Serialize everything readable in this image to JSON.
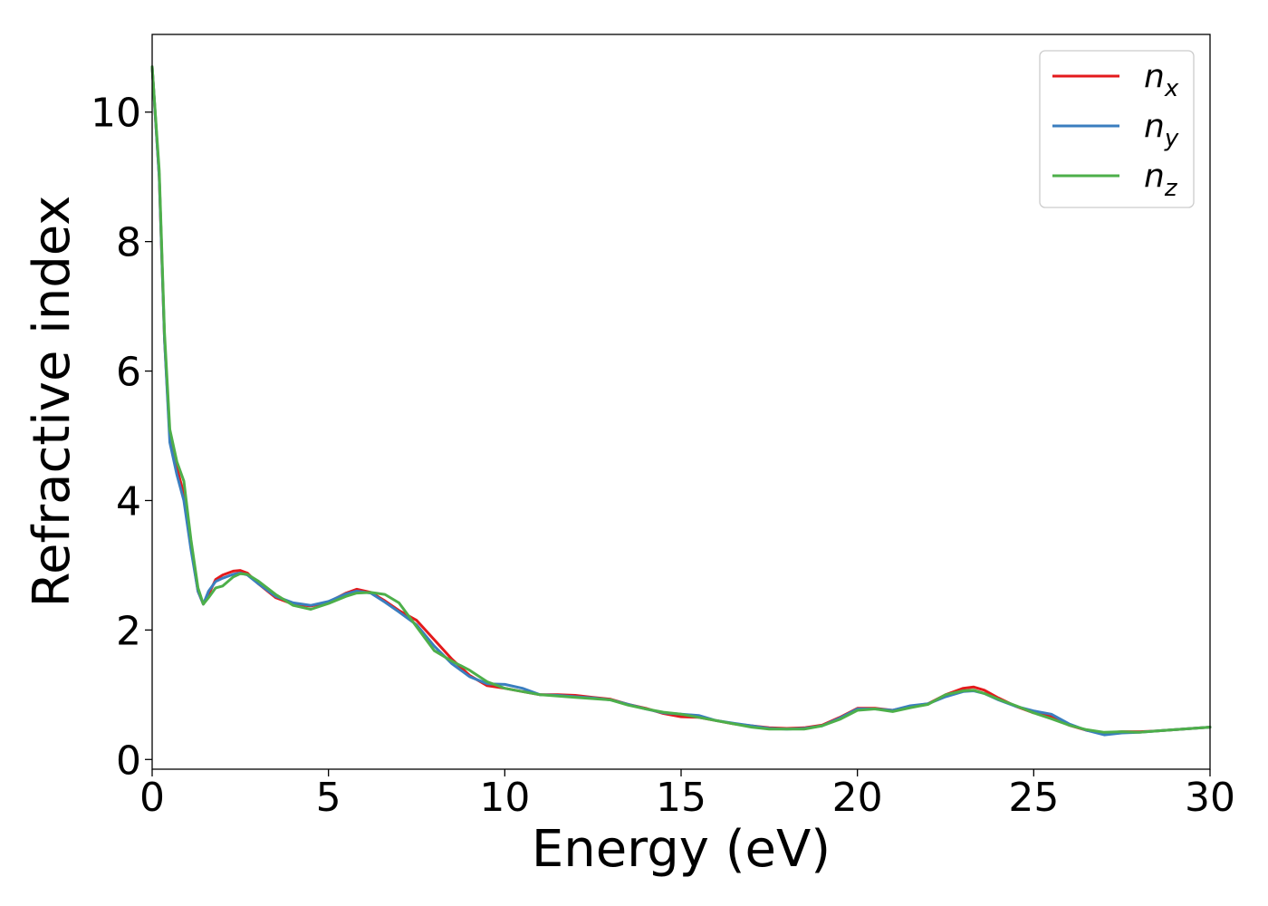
{
  "chart_data": {
    "type": "line",
    "title": "",
    "xlabel": "Energy (eV)",
    "ylabel": "Refractive index",
    "xlim": [
      0,
      30
    ],
    "ylim": [
      -0.15,
      11.2
    ],
    "xticks": [
      0,
      5,
      10,
      15,
      20,
      25,
      30
    ],
    "yticks": [
      0,
      2,
      4,
      6,
      8,
      10
    ],
    "grid": false,
    "legend_position": "top-right",
    "series": [
      {
        "name": "n_x",
        "label_main": "n",
        "label_sub": "x",
        "color": "#e31a1c",
        "points": [
          [
            0,
            10.7
          ],
          [
            0.2,
            9.0
          ],
          [
            0.35,
            6.5
          ],
          [
            0.5,
            5.0
          ],
          [
            0.7,
            4.5
          ],
          [
            0.9,
            4.1
          ],
          [
            1.1,
            3.3
          ],
          [
            1.3,
            2.6
          ],
          [
            1.45,
            2.4
          ],
          [
            1.6,
            2.55
          ],
          [
            1.8,
            2.78
          ],
          [
            2.0,
            2.85
          ],
          [
            2.3,
            2.91
          ],
          [
            2.5,
            2.92
          ],
          [
            2.7,
            2.88
          ],
          [
            3.0,
            2.72
          ],
          [
            3.5,
            2.5
          ],
          [
            4.0,
            2.4
          ],
          [
            4.5,
            2.37
          ],
          [
            5.0,
            2.43
          ],
          [
            5.5,
            2.57
          ],
          [
            5.8,
            2.63
          ],
          [
            6.2,
            2.58
          ],
          [
            6.6,
            2.45
          ],
          [
            7.0,
            2.3
          ],
          [
            7.5,
            2.15
          ],
          [
            8.0,
            1.85
          ],
          [
            8.5,
            1.55
          ],
          [
            9.0,
            1.3
          ],
          [
            9.5,
            1.14
          ],
          [
            10.0,
            1.1
          ],
          [
            10.5,
            1.05
          ],
          [
            11.0,
            1.0
          ],
          [
            11.5,
            1.0
          ],
          [
            12.0,
            0.99
          ],
          [
            12.5,
            0.96
          ],
          [
            13.0,
            0.93
          ],
          [
            13.5,
            0.85
          ],
          [
            14.0,
            0.79
          ],
          [
            14.5,
            0.71
          ],
          [
            15.0,
            0.66
          ],
          [
            15.5,
            0.65
          ],
          [
            16.0,
            0.6
          ],
          [
            16.5,
            0.55
          ],
          [
            17.0,
            0.52
          ],
          [
            17.5,
            0.49
          ],
          [
            18.0,
            0.48
          ],
          [
            18.5,
            0.49
          ],
          [
            19.0,
            0.53
          ],
          [
            19.5,
            0.65
          ],
          [
            20.0,
            0.79
          ],
          [
            20.5,
            0.79
          ],
          [
            21.0,
            0.76
          ],
          [
            21.5,
            0.82
          ],
          [
            22.0,
            0.86
          ],
          [
            22.5,
            1.0
          ],
          [
            23.0,
            1.1
          ],
          [
            23.3,
            1.12
          ],
          [
            23.6,
            1.07
          ],
          [
            24.0,
            0.95
          ],
          [
            24.5,
            0.82
          ],
          [
            25.0,
            0.72
          ],
          [
            25.5,
            0.66
          ],
          [
            26.0,
            0.53
          ],
          [
            26.5,
            0.45
          ],
          [
            27.0,
            0.41
          ],
          [
            27.5,
            0.43
          ],
          [
            28.0,
            0.43
          ],
          [
            28.5,
            0.44
          ],
          [
            29.0,
            0.46
          ],
          [
            29.5,
            0.48
          ],
          [
            30.0,
            0.5
          ]
        ]
      },
      {
        "name": "n_y",
        "label_main": "n",
        "label_sub": "y",
        "color": "#3a7ebf",
        "points": [
          [
            0,
            10.7
          ],
          [
            0.2,
            9.0
          ],
          [
            0.35,
            6.5
          ],
          [
            0.5,
            4.9
          ],
          [
            0.7,
            4.4
          ],
          [
            0.9,
            4.0
          ],
          [
            1.1,
            3.25
          ],
          [
            1.3,
            2.6
          ],
          [
            1.45,
            2.4
          ],
          [
            1.6,
            2.6
          ],
          [
            1.8,
            2.75
          ],
          [
            2.0,
            2.8
          ],
          [
            2.3,
            2.86
          ],
          [
            2.5,
            2.88
          ],
          [
            2.7,
            2.85
          ],
          [
            3.0,
            2.72
          ],
          [
            3.5,
            2.52
          ],
          [
            4.0,
            2.42
          ],
          [
            4.5,
            2.38
          ],
          [
            5.0,
            2.44
          ],
          [
            5.5,
            2.56
          ],
          [
            5.8,
            2.6
          ],
          [
            6.2,
            2.57
          ],
          [
            6.6,
            2.43
          ],
          [
            7.0,
            2.28
          ],
          [
            7.5,
            2.08
          ],
          [
            8.0,
            1.75
          ],
          [
            8.5,
            1.48
          ],
          [
            9.0,
            1.28
          ],
          [
            9.5,
            1.17
          ],
          [
            10.0,
            1.16
          ],
          [
            10.5,
            1.1
          ],
          [
            11.0,
            1.0
          ],
          [
            11.5,
            0.99
          ],
          [
            12.0,
            0.97
          ],
          [
            12.5,
            0.95
          ],
          [
            13.0,
            0.92
          ],
          [
            13.5,
            0.85
          ],
          [
            14.0,
            0.78
          ],
          [
            14.5,
            0.72
          ],
          [
            15.0,
            0.7
          ],
          [
            15.5,
            0.68
          ],
          [
            16.0,
            0.6
          ],
          [
            16.5,
            0.56
          ],
          [
            17.0,
            0.52
          ],
          [
            17.5,
            0.48
          ],
          [
            18.0,
            0.47
          ],
          [
            18.5,
            0.48
          ],
          [
            19.0,
            0.52
          ],
          [
            19.5,
            0.64
          ],
          [
            20.0,
            0.78
          ],
          [
            20.5,
            0.78
          ],
          [
            21.0,
            0.76
          ],
          [
            21.5,
            0.83
          ],
          [
            22.0,
            0.86
          ],
          [
            22.5,
            0.97
          ],
          [
            23.0,
            1.05
          ],
          [
            23.3,
            1.06
          ],
          [
            23.6,
            1.02
          ],
          [
            24.0,
            0.92
          ],
          [
            24.5,
            0.82
          ],
          [
            25.0,
            0.75
          ],
          [
            25.5,
            0.7
          ],
          [
            26.0,
            0.55
          ],
          [
            26.5,
            0.45
          ],
          [
            27.0,
            0.38
          ],
          [
            27.5,
            0.41
          ],
          [
            28.0,
            0.42
          ],
          [
            28.5,
            0.44
          ],
          [
            29.0,
            0.46
          ],
          [
            29.5,
            0.48
          ],
          [
            30.0,
            0.5
          ]
        ]
      },
      {
        "name": "n_z",
        "label_main": "n",
        "label_sub": "z",
        "color": "#4daf4a",
        "points": [
          [
            0,
            10.7
          ],
          [
            0.2,
            9.1
          ],
          [
            0.35,
            6.6
          ],
          [
            0.5,
            5.1
          ],
          [
            0.7,
            4.6
          ],
          [
            0.9,
            4.3
          ],
          [
            1.1,
            3.4
          ],
          [
            1.3,
            2.65
          ],
          [
            1.45,
            2.4
          ],
          [
            1.6,
            2.5
          ],
          [
            1.8,
            2.65
          ],
          [
            2.0,
            2.68
          ],
          [
            2.3,
            2.82
          ],
          [
            2.5,
            2.87
          ],
          [
            2.7,
            2.86
          ],
          [
            3.0,
            2.76
          ],
          [
            3.5,
            2.55
          ],
          [
            4.0,
            2.38
          ],
          [
            4.5,
            2.32
          ],
          [
            5.0,
            2.41
          ],
          [
            5.5,
            2.52
          ],
          [
            5.8,
            2.57
          ],
          [
            6.2,
            2.58
          ],
          [
            6.6,
            2.55
          ],
          [
            7.0,
            2.42
          ],
          [
            7.5,
            2.05
          ],
          [
            8.0,
            1.68
          ],
          [
            8.5,
            1.52
          ],
          [
            9.0,
            1.38
          ],
          [
            9.5,
            1.2
          ],
          [
            10.0,
            1.1
          ],
          [
            10.5,
            1.05
          ],
          [
            11.0,
            1.0
          ],
          [
            11.5,
            0.98
          ],
          [
            12.0,
            0.96
          ],
          [
            12.5,
            0.94
          ],
          [
            13.0,
            0.92
          ],
          [
            13.5,
            0.84
          ],
          [
            14.0,
            0.78
          ],
          [
            14.5,
            0.73
          ],
          [
            15.0,
            0.7
          ],
          [
            15.5,
            0.65
          ],
          [
            16.0,
            0.6
          ],
          [
            16.5,
            0.55
          ],
          [
            17.0,
            0.5
          ],
          [
            17.5,
            0.47
          ],
          [
            18.0,
            0.47
          ],
          [
            18.5,
            0.47
          ],
          [
            19.0,
            0.52
          ],
          [
            19.5,
            0.62
          ],
          [
            20.0,
            0.76
          ],
          [
            20.5,
            0.78
          ],
          [
            21.0,
            0.74
          ],
          [
            21.5,
            0.8
          ],
          [
            22.0,
            0.85
          ],
          [
            22.5,
            1.0
          ],
          [
            23.0,
            1.06
          ],
          [
            23.3,
            1.07
          ],
          [
            23.6,
            1.02
          ],
          [
            24.0,
            0.93
          ],
          [
            24.5,
            0.83
          ],
          [
            25.0,
            0.72
          ],
          [
            25.5,
            0.63
          ],
          [
            26.0,
            0.53
          ],
          [
            26.5,
            0.46
          ],
          [
            27.0,
            0.42
          ],
          [
            27.5,
            0.43
          ],
          [
            28.0,
            0.42
          ],
          [
            28.5,
            0.44
          ],
          [
            29.0,
            0.46
          ],
          [
            29.5,
            0.48
          ],
          [
            30.0,
            0.5
          ]
        ]
      }
    ]
  }
}
